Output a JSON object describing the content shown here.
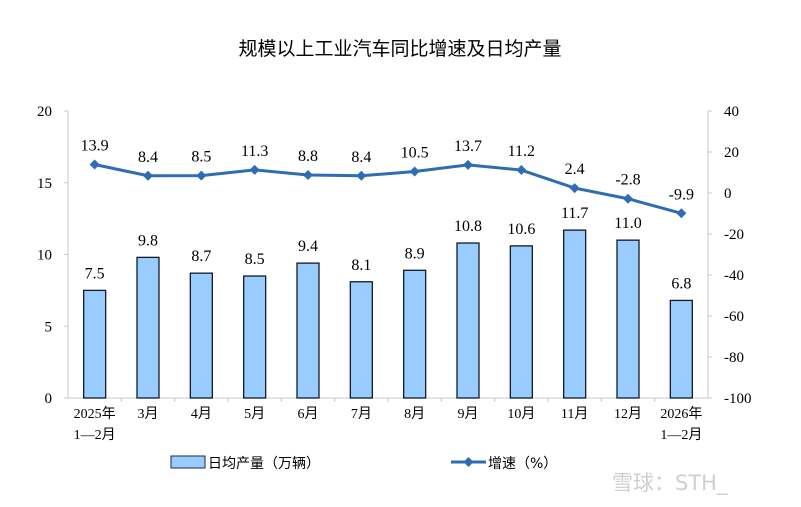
{
  "chart_data": {
    "type": "bar+line",
    "title": "规模以上工业汽车同比增速及日均产量",
    "categories": [
      [
        "2025年",
        "1—2月"
      ],
      [
        "3月"
      ],
      [
        "4月"
      ],
      [
        "5月"
      ],
      [
        "6月"
      ],
      [
        "7月"
      ],
      [
        "8月"
      ],
      [
        "9月"
      ],
      [
        "10月"
      ],
      [
        "11月"
      ],
      [
        "12月"
      ],
      [
        "2026年",
        "1—2月"
      ]
    ],
    "left_axis": {
      "range": [
        0,
        20
      ],
      "ticks": [
        "0",
        "5",
        "10",
        "15",
        "20"
      ]
    },
    "right_axis": {
      "range": [
        -100,
        40
      ],
      "ticks": [
        "-100",
        "-80",
        "-60",
        "-40",
        "-20",
        "0",
        "20",
        "40"
      ]
    },
    "series": [
      {
        "name": "日均产量（万辆）",
        "type": "bar",
        "axis": "left",
        "color": "#99ccff",
        "values": [
          7.5,
          9.8,
          8.7,
          8.5,
          9.4,
          8.1,
          8.9,
          10.8,
          10.6,
          11.7,
          11.0,
          6.8
        ],
        "labels": [
          "7.5",
          "9.8",
          "8.7",
          "8.5",
          "9.4",
          "8.1",
          "8.9",
          "10.8",
          "10.6",
          "11.7",
          "11.0",
          "6.8"
        ]
      },
      {
        "name": "增速（%）",
        "type": "line",
        "axis": "right",
        "color": "#2e6db4",
        "values": [
          13.9,
          8.4,
          8.5,
          11.3,
          8.8,
          8.4,
          10.5,
          13.7,
          11.2,
          2.4,
          -2.8,
          -9.9
        ],
        "labels": [
          "13.9",
          "8.4",
          "8.5",
          "11.3",
          "8.8",
          "8.4",
          "10.5",
          "13.7",
          "11.2",
          "2.4",
          "-2.8",
          "-9.9"
        ]
      }
    ],
    "legend": "bottom",
    "grid": false
  },
  "watermark": "雪球：STH_"
}
